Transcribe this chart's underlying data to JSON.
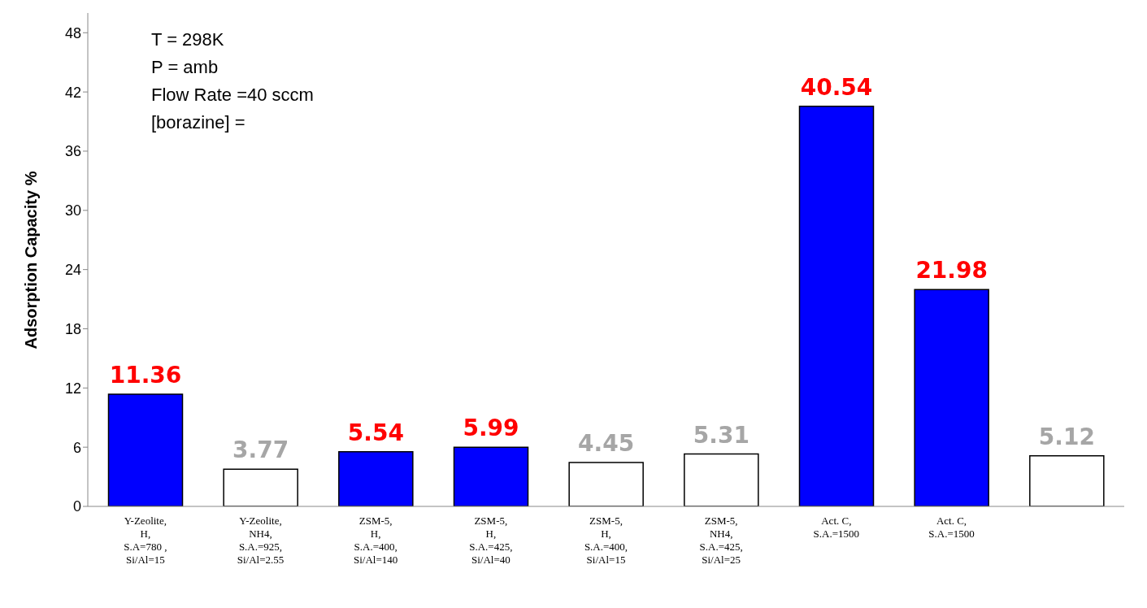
{
  "chart_data": {
    "type": "bar",
    "ylabel": "Adsorption Capacity %",
    "categories": [
      "Y-Zeolite,\nH,\nS.A=780 ,\nSi/Al=15",
      "Y-Zeolite,\nNH4,\nS.A.=925,\nSi/Al=2.55",
      "ZSM-5,\nH,\nS.A.=400,\nSi/Al=140",
      "ZSM-5,\nH,\nS.A.=425,\nSi/Al=40",
      "ZSM-5,\nH,\nS.A.=400,\nSi/Al=15",
      "ZSM-5,\nNH4,\nS.A.=425,\nSi/Al=25",
      "Act. C,\nS.A.=1500",
      "Act. C,\nS.A.=1500",
      null
    ],
    "values": [
      11.36,
      3.77,
      5.54,
      5.99,
      4.45,
      5.31,
      40.54,
      21.98,
      5.12
    ],
    "colors": [
      "#0000ff",
      "#ffffff",
      "#0000ff",
      "#0000ff",
      "#ffffff",
      "#ffffff",
      "#0000ff",
      "#0000ff",
      "#ffffff"
    ],
    "ylim": [
      0,
      50
    ],
    "yticks": [
      0,
      6,
      12,
      18,
      24,
      30,
      36,
      42,
      48
    ],
    "grid": false,
    "data_labels": true,
    "legend": false,
    "annotations": [
      "T = 298K",
      "P = amb",
      "Flow Rate =40 sccm",
      "[borazine] ="
    ]
  }
}
